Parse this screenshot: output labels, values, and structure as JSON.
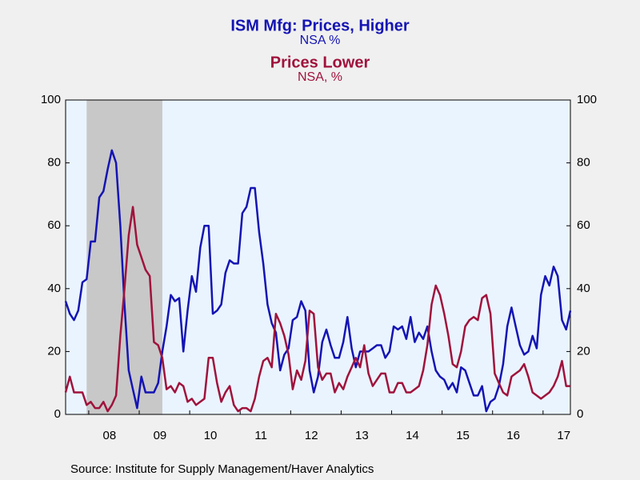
{
  "chart_data": {
    "type": "line",
    "series": [
      {
        "name": "ISM Mfg: Prices, Higher",
        "units": "NSA %",
        "color": "#1414b4",
        "values": [
          36,
          32,
          30,
          33,
          42,
          43,
          55,
          55,
          69,
          71,
          78,
          84,
          80,
          60,
          35,
          14,
          8,
          2,
          12,
          7,
          7,
          7,
          10,
          20,
          28,
          38,
          36,
          37,
          20,
          33,
          44,
          39,
          53,
          60,
          60,
          32,
          33,
          35,
          45,
          49,
          48,
          48,
          64,
          66,
          72,
          72,
          58,
          48,
          35,
          29,
          26,
          14,
          19,
          21,
          30,
          31,
          36,
          33,
          14,
          7,
          12,
          23,
          27,
          22,
          18,
          18,
          23,
          31,
          21,
          15,
          20,
          20,
          20,
          21,
          22,
          22,
          18,
          20,
          28,
          27,
          28,
          24,
          31,
          23,
          26,
          24,
          28,
          20,
          14,
          12,
          11,
          8,
          10,
          7,
          15,
          14,
          10,
          6,
          6,
          9,
          1,
          4,
          5,
          9,
          16,
          28,
          34,
          28,
          22,
          19,
          20,
          25,
          21,
          38,
          44,
          41,
          47,
          44,
          30,
          27,
          33
        ]
      },
      {
        "name": "Prices Lower",
        "units": "NSA, %",
        "color": "#a0123c",
        "axis": "y2",
        "values": [
          7,
          12,
          7,
          7,
          7,
          3,
          4,
          2,
          2,
          4,
          1,
          3,
          6,
          25,
          40,
          57,
          66,
          54,
          50,
          46,
          44,
          23,
          22,
          18,
          8,
          9,
          7,
          10,
          9,
          4,
          5,
          3,
          4,
          5,
          18,
          18,
          10,
          4,
          7,
          9,
          3,
          1,
          2,
          2,
          1,
          5,
          12,
          17,
          18,
          15,
          32,
          29,
          25,
          19,
          8,
          14,
          11,
          17,
          33,
          32,
          15,
          11,
          13,
          13,
          7,
          10,
          8,
          12,
          15,
          18,
          15,
          22,
          13,
          9,
          11,
          13,
          13,
          7,
          7,
          10,
          10,
          7,
          7,
          8,
          9,
          14,
          22,
          35,
          41,
          38,
          32,
          25,
          16,
          15,
          20,
          28,
          30,
          31,
          30,
          37,
          38,
          32,
          13,
          10,
          7,
          6,
          12,
          13,
          14,
          16,
          12,
          7,
          6,
          5,
          6,
          7,
          9,
          12,
          17,
          9,
          9
        ]
      }
    ],
    "categories": [
      null,
      null,
      null,
      null,
      null,
      null,
      null,
      null,
      null,
      null,
      null,
      "08",
      null,
      null,
      null,
      null,
      null,
      null,
      null,
      null,
      null,
      null,
      null,
      "09",
      null,
      null,
      null,
      null,
      null,
      null,
      null,
      null,
      null,
      null,
      null,
      "10",
      null,
      null,
      null,
      null,
      null,
      null,
      null,
      null,
      null,
      null,
      null,
      "11",
      null,
      null,
      null,
      null,
      null,
      null,
      null,
      null,
      null,
      null,
      null,
      "12",
      null,
      null,
      null,
      null,
      null,
      null,
      null,
      null,
      null,
      null,
      null,
      "13",
      null,
      null,
      null,
      null,
      null,
      null,
      null,
      null,
      null,
      null,
      null,
      "14",
      null,
      null,
      null,
      null,
      null,
      null,
      null,
      null,
      null,
      null,
      null,
      "15",
      null,
      null,
      null,
      null,
      null,
      null,
      null,
      null,
      null,
      null,
      null,
      "16",
      null,
      null,
      null,
      null,
      null,
      null,
      null,
      null,
      null,
      null,
      null,
      "17",
      null
    ],
    "shading": {
      "from": 5,
      "to": 23
    },
    "ylim": [
      0,
      100
    ],
    "yticks": [
      0,
      20,
      40,
      60,
      80,
      100
    ],
    "y2lim": [
      0,
      100
    ],
    "y2ticks": [
      0,
      20,
      40,
      60,
      80,
      100
    ],
    "source": "Source:  Institute for Supply Management/Haver Analytics"
  }
}
